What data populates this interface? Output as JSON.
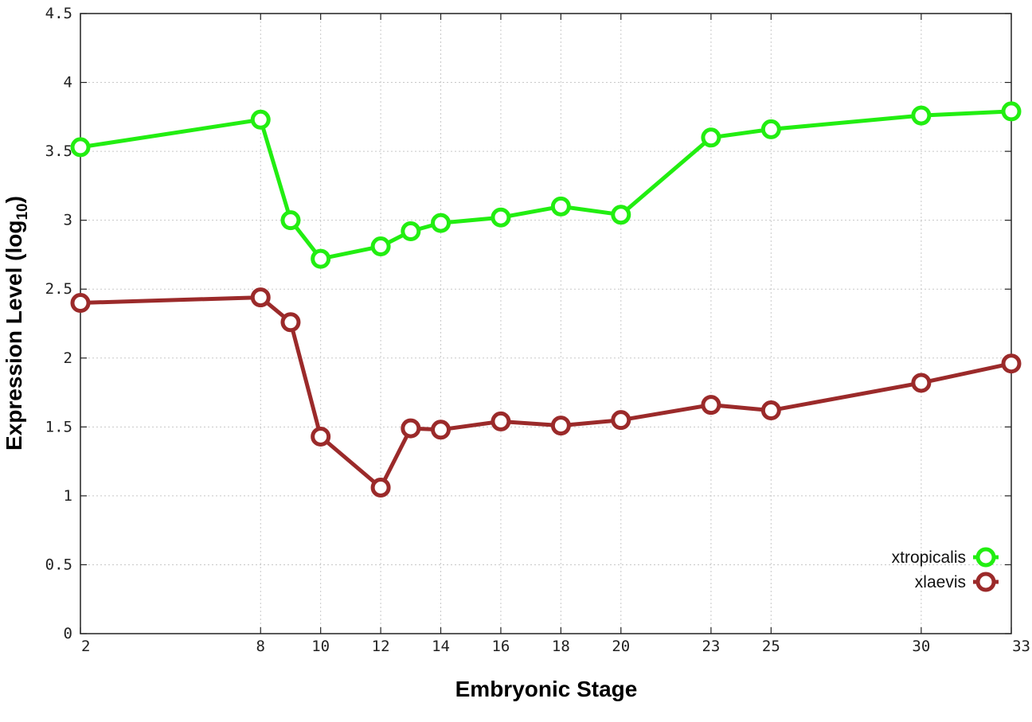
{
  "chart_data": {
    "type": "line",
    "xlabel": "Embryonic Stage",
    "ylabel_main": "Expression Level (log",
    "ylabel_sub": "10",
    "ylabel_close": ")",
    "xlim": [
      2,
      33
    ],
    "ylim": [
      0,
      4.5
    ],
    "grid": true,
    "legend_position": "bottom-right",
    "x_ticks": [
      2,
      8,
      10,
      12,
      14,
      16,
      18,
      20,
      23,
      25,
      30,
      33
    ],
    "y_ticks": [
      0,
      0.5,
      1,
      1.5,
      2,
      2.5,
      3,
      3.5,
      4,
      4.5
    ],
    "y_tick_labels": [
      "0",
      "0.5",
      "1",
      "1.5",
      "2",
      "2.5",
      "3",
      "3.5",
      "4",
      "4.5"
    ],
    "series": [
      {
        "name": "xtropicalis",
        "color": "#22ee11",
        "x": [
          2,
          8,
          9,
          10,
          12,
          13,
          14,
          16,
          18,
          20,
          23,
          25,
          30,
          33
        ],
        "values": [
          3.53,
          3.73,
          3.0,
          2.72,
          2.81,
          2.92,
          2.98,
          3.02,
          3.1,
          3.04,
          3.6,
          3.66,
          3.76,
          3.79
        ]
      },
      {
        "name": "xlaevis",
        "color": "#9b2a2a",
        "x": [
          2,
          8,
          9,
          10,
          12,
          13,
          14,
          16,
          18,
          20,
          23,
          25,
          30,
          33
        ],
        "values": [
          2.4,
          2.44,
          2.26,
          1.43,
          1.06,
          1.49,
          1.48,
          1.54,
          1.51,
          1.55,
          1.66,
          1.62,
          1.82,
          1.96
        ]
      }
    ]
  }
}
